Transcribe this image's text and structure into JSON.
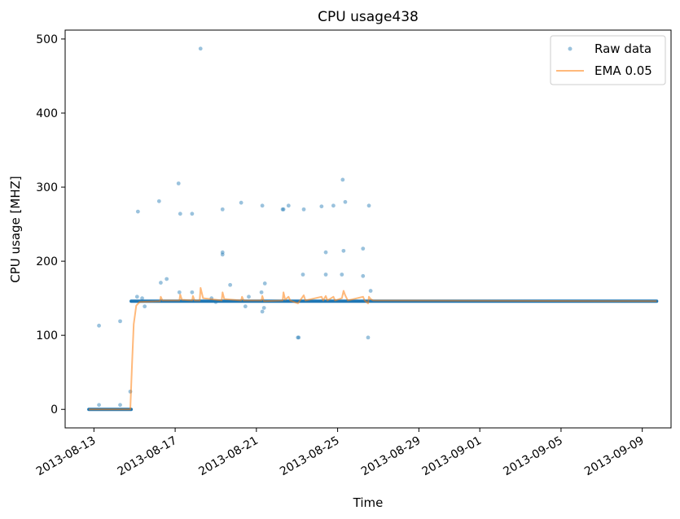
{
  "chart_data": {
    "type": "line",
    "title": "CPU usage438",
    "xlabel": "Time",
    "ylabel": "CPU usage [MHZ]",
    "x_ticks": [
      "2013-08-13",
      "2013-08-17",
      "2013-08-21",
      "2013-08-25",
      "2013-08-29",
      "2013-09-01",
      "2013-09-05",
      "2013-09-09"
    ],
    "y_ticks": [
      0,
      100,
      200,
      300,
      400,
      500
    ],
    "xlim": [
      "2013-08-11T14:00",
      "2013-09-10T10:00"
    ],
    "ylim": [
      -25,
      512
    ],
    "grid": false,
    "legend_position": "top-right",
    "colors": {
      "raw": "#1f77b4",
      "ema": "#ff7f0e"
    },
    "series": [
      {
        "name": "Raw data",
        "style": "points",
        "baseline_segments": [
          {
            "x_start": "2013-08-12T18:00",
            "x_end": "2013-08-14T20:00",
            "value": 0
          },
          {
            "x_start": "2013-08-14T20:00",
            "x_end": "2013-09-09T17:00",
            "value": 146
          }
        ],
        "points": [
          {
            "x": "2013-08-13T06:00",
            "y": 113
          },
          {
            "x": "2013-08-13T06:00",
            "y": 6
          },
          {
            "x": "2013-08-14T07:00",
            "y": 119
          },
          {
            "x": "2013-08-14T07:00",
            "y": 6
          },
          {
            "x": "2013-08-14T19:00",
            "y": 24
          },
          {
            "x": "2013-08-15T04:00",
            "y": 267
          },
          {
            "x": "2013-08-15T03:00",
            "y": 152
          },
          {
            "x": "2013-08-15T12:00",
            "y": 139
          },
          {
            "x": "2013-08-15T09:00",
            "y": 150
          },
          {
            "x": "2013-08-16T05:00",
            "y": 281
          },
          {
            "x": "2013-08-16T07:00",
            "y": 171
          },
          {
            "x": "2013-08-16T14:00",
            "y": 176
          },
          {
            "x": "2013-08-17T04:00",
            "y": 305
          },
          {
            "x": "2013-08-17T06:00",
            "y": 264
          },
          {
            "x": "2013-08-17T05:00",
            "y": 158
          },
          {
            "x": "2013-08-17T20:00",
            "y": 264
          },
          {
            "x": "2013-08-17T20:00",
            "y": 158
          },
          {
            "x": "2013-08-18T06:00",
            "y": 487
          },
          {
            "x": "2013-08-18T19:00",
            "y": 150
          },
          {
            "x": "2013-08-19T00:00",
            "y": 145
          },
          {
            "x": "2013-08-19T08:00",
            "y": 270
          },
          {
            "x": "2013-08-19T08:00",
            "y": 212
          },
          {
            "x": "2013-08-19T08:00",
            "y": 209
          },
          {
            "x": "2013-08-19T17:00",
            "y": 168
          },
          {
            "x": "2013-08-20T06:00",
            "y": 279
          },
          {
            "x": "2013-08-20T11:00",
            "y": 139
          },
          {
            "x": "2013-08-20T15:00",
            "y": 152
          },
          {
            "x": "2013-08-21T06:00",
            "y": 158
          },
          {
            "x": "2013-08-21T07:00",
            "y": 275
          },
          {
            "x": "2013-08-21T07:00",
            "y": 132
          },
          {
            "x": "2013-08-21T09:00",
            "y": 137
          },
          {
            "x": "2013-08-21T10:00",
            "y": 170
          },
          {
            "x": "2013-08-22T07:00",
            "y": 270
          },
          {
            "x": "2013-08-22T08:00",
            "y": 270
          },
          {
            "x": "2013-08-22T14:00",
            "y": 275
          },
          {
            "x": "2013-08-23T01:00",
            "y": 97
          },
          {
            "x": "2013-08-23T02:00",
            "y": 97
          },
          {
            "x": "2013-08-23T07:00",
            "y": 182
          },
          {
            "x": "2013-08-23T08:00",
            "y": 270
          },
          {
            "x": "2013-08-24T05:00",
            "y": 274
          },
          {
            "x": "2013-08-24T10:00",
            "y": 212
          },
          {
            "x": "2013-08-24T10:00",
            "y": 182
          },
          {
            "x": "2013-08-24T19:00",
            "y": 275
          },
          {
            "x": "2013-08-25T06:00",
            "y": 310
          },
          {
            "x": "2013-08-25T07:00",
            "y": 214
          },
          {
            "x": "2013-08-25T05:00",
            "y": 182
          },
          {
            "x": "2013-08-25T09:00",
            "y": 280
          },
          {
            "x": "2013-08-26T06:00",
            "y": 217
          },
          {
            "x": "2013-08-26T06:00",
            "y": 180
          },
          {
            "x": "2013-08-26T12:00",
            "y": 97
          },
          {
            "x": "2013-08-26T13:00",
            "y": 275
          },
          {
            "x": "2013-08-26T15:00",
            "y": 160
          }
        ]
      },
      {
        "name": "EMA 0.05",
        "style": "line",
        "points": [
          {
            "x": "2013-08-12T18:00",
            "y": 0
          },
          {
            "x": "2013-08-14T19:00",
            "y": 0
          },
          {
            "x": "2013-08-14T21:00",
            "y": 60
          },
          {
            "x": "2013-08-14T23:00",
            "y": 115
          },
          {
            "x": "2013-08-15T02:00",
            "y": 140
          },
          {
            "x": "2013-08-15T06:00",
            "y": 145
          },
          {
            "x": "2013-08-16T06:00",
            "y": 146
          },
          {
            "x": "2013-08-16T07:00",
            "y": 152
          },
          {
            "x": "2013-08-16T09:00",
            "y": 147
          },
          {
            "x": "2013-08-17T05:00",
            "y": 147
          },
          {
            "x": "2013-08-17T06:00",
            "y": 155
          },
          {
            "x": "2013-08-17T08:00",
            "y": 148
          },
          {
            "x": "2013-08-17T20:00",
            "y": 147
          },
          {
            "x": "2013-08-17T21:00",
            "y": 153
          },
          {
            "x": "2013-08-17T23:00",
            "y": 147
          },
          {
            "x": "2013-08-18T05:00",
            "y": 147
          },
          {
            "x": "2013-08-18T06:00",
            "y": 164
          },
          {
            "x": "2013-08-18T09:00",
            "y": 150
          },
          {
            "x": "2013-08-19T07:00",
            "y": 147
          },
          {
            "x": "2013-08-19T08:00",
            "y": 158
          },
          {
            "x": "2013-08-19T10:00",
            "y": 149
          },
          {
            "x": "2013-08-20T06:00",
            "y": 147
          },
          {
            "x": "2013-08-20T07:00",
            "y": 152
          },
          {
            "x": "2013-08-20T09:00",
            "y": 147
          },
          {
            "x": "2013-08-21T06:00",
            "y": 147
          },
          {
            "x": "2013-08-21T07:00",
            "y": 153
          },
          {
            "x": "2013-08-21T09:00",
            "y": 146
          },
          {
            "x": "2013-08-22T07:00",
            "y": 147
          },
          {
            "x": "2013-08-22T08:00",
            "y": 158
          },
          {
            "x": "2013-08-22T10:00",
            "y": 148
          },
          {
            "x": "2013-08-22T14:00",
            "y": 152
          },
          {
            "x": "2013-08-22T16:00",
            "y": 147
          },
          {
            "x": "2013-08-23T01:00",
            "y": 143
          },
          {
            "x": "2013-08-23T03:00",
            "y": 146
          },
          {
            "x": "2013-08-23T08:00",
            "y": 154
          },
          {
            "x": "2013-08-23T10:00",
            "y": 147
          },
          {
            "x": "2013-08-24T05:00",
            "y": 152
          },
          {
            "x": "2013-08-24T07:00",
            "y": 147
          },
          {
            "x": "2013-08-24T10:00",
            "y": 153
          },
          {
            "x": "2013-08-24T12:00",
            "y": 147
          },
          {
            "x": "2013-08-24T19:00",
            "y": 152
          },
          {
            "x": "2013-08-24T21:00",
            "y": 147
          },
          {
            "x": "2013-08-25T05:00",
            "y": 150
          },
          {
            "x": "2013-08-25T07:00",
            "y": 160
          },
          {
            "x": "2013-08-25T09:00",
            "y": 154
          },
          {
            "x": "2013-08-25T12:00",
            "y": 147
          },
          {
            "x": "2013-08-26T06:00",
            "y": 152
          },
          {
            "x": "2013-08-26T08:00",
            "y": 147
          },
          {
            "x": "2013-08-26T12:00",
            "y": 143
          },
          {
            "x": "2013-08-26T13:00",
            "y": 152
          },
          {
            "x": "2013-08-26T15:00",
            "y": 149
          },
          {
            "x": "2013-08-26T18:00",
            "y": 147
          },
          {
            "x": "2013-09-09T17:00",
            "y": 146
          }
        ]
      }
    ]
  }
}
